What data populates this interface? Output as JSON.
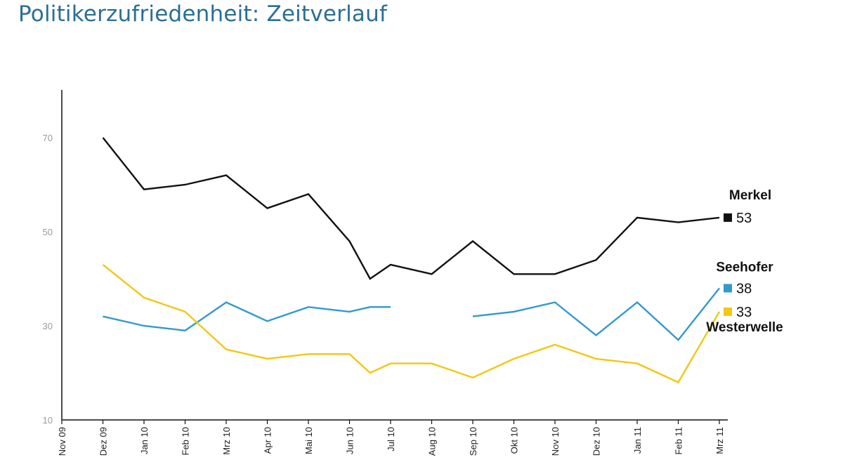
{
  "page": {
    "title": "Politikerzufriedenheit: Zeitverlauf"
  },
  "chart_data": {
    "type": "line",
    "title": "Politikerzufriedenheit: Zeitverlauf",
    "xlabel": "",
    "ylabel": "",
    "ylim": [
      10,
      80
    ],
    "yticks": [
      10,
      30,
      50,
      70
    ],
    "categories": [
      "Nov 09",
      "Dez 09",
      "Jan 10",
      "Feb 10",
      "Mrz 10",
      "Apr 10",
      "Mai 10",
      "Jun 10",
      "Jul 10",
      "Aug 10",
      "Sep 10",
      "Okt 10",
      "Nov 10",
      "Dez 10",
      "Jan 11",
      "Feb 11",
      "Mrz 11"
    ],
    "series": [
      {
        "name": "Merkel",
        "end_label": "53",
        "color": "#111111",
        "points": [
          [
            1,
            70
          ],
          [
            2,
            59
          ],
          [
            3,
            60
          ],
          [
            4,
            62
          ],
          [
            5,
            55
          ],
          [
            6,
            58
          ],
          [
            7,
            48
          ],
          [
            7.5,
            40
          ],
          [
            8,
            43
          ],
          [
            9,
            41
          ],
          [
            10,
            48
          ],
          [
            11,
            41
          ],
          [
            12,
            41
          ],
          [
            13,
            44
          ],
          [
            14,
            53
          ],
          [
            15,
            52
          ],
          [
            16,
            53
          ]
        ]
      },
      {
        "name": "Seehofer",
        "end_label": "38",
        "color": "#3399cc",
        "segments": [
          [
            [
              1,
              32
            ],
            [
              2,
              30
            ],
            [
              3,
              29
            ],
            [
              4,
              35
            ],
            [
              5,
              31
            ],
            [
              6,
              34
            ],
            [
              7,
              33
            ],
            [
              7.5,
              34
            ],
            [
              8,
              34
            ]
          ],
          [
            [
              10,
              32
            ],
            [
              11,
              33
            ],
            [
              12,
              35
            ],
            [
              13,
              28
            ],
            [
              14,
              35
            ],
            [
              15,
              27
            ],
            [
              16,
              38
            ]
          ]
        ]
      },
      {
        "name": "Westerwelle",
        "end_label": "33",
        "color": "#f2c811",
        "points": [
          [
            1,
            43
          ],
          [
            2,
            36
          ],
          [
            3,
            33
          ],
          [
            4,
            25
          ],
          [
            5,
            23
          ],
          [
            6,
            24
          ],
          [
            7,
            24
          ],
          [
            7.5,
            20
          ],
          [
            8,
            22
          ],
          [
            9,
            22
          ],
          [
            10,
            19
          ],
          [
            11,
            23
          ],
          [
            12,
            26
          ],
          [
            13,
            23
          ],
          [
            14,
            22
          ],
          [
            15,
            18
          ],
          [
            16,
            33
          ]
        ]
      }
    ]
  }
}
